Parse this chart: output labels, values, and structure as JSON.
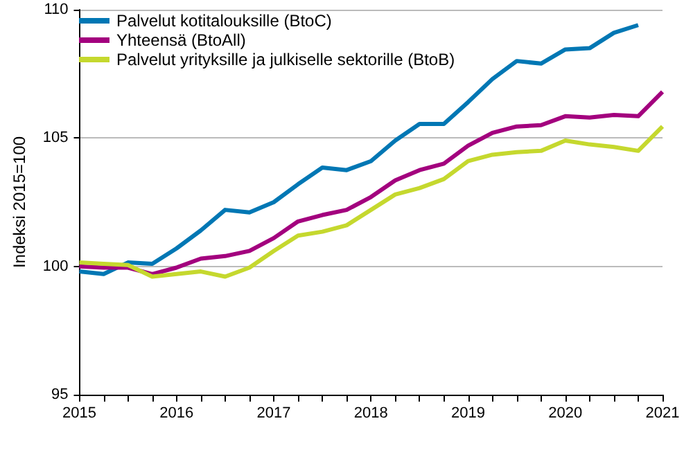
{
  "chart_data": {
    "type": "line",
    "ylabel": "Indeksi 2015=100",
    "x": [
      2015,
      2015.25,
      2015.5,
      2015.75,
      2016,
      2016.25,
      2016.5,
      2016.75,
      2017,
      2017.25,
      2017.5,
      2017.75,
      2018,
      2018.25,
      2018.5,
      2018.75,
      2019,
      2019.25,
      2019.5,
      2019.75,
      2020,
      2020.25,
      2020.5,
      2020.75,
      2021
    ],
    "series": [
      {
        "name": "Palvelut kotitalouksille (BtoC)",
        "color": "#0077b4",
        "values": [
          99.8,
          99.7,
          100.15,
          100.1,
          100.7,
          101.4,
          102.2,
          102.1,
          102.5,
          103.2,
          103.85,
          103.75,
          104.1,
          104.9,
          105.55,
          105.55,
          106.4,
          107.3,
          108.0,
          107.9,
          108.45,
          108.5,
          109.1,
          109.4,
          null
        ]
      },
      {
        "name": "Yhteensä (BtoAll)",
        "color": "#a3007e",
        "values": [
          100.0,
          99.95,
          99.95,
          99.7,
          99.95,
          100.3,
          100.4,
          100.6,
          101.1,
          101.75,
          102.0,
          102.2,
          102.7,
          103.35,
          103.75,
          104.0,
          104.7,
          105.2,
          105.45,
          105.5,
          105.85,
          105.8,
          105.9,
          105.85,
          106.8
        ]
      },
      {
        "name": "Palvelut yrityksille ja julkiselle sektorille (BtoB)",
        "color": "#c5d82e",
        "values": [
          100.15,
          100.1,
          100.05,
          99.6,
          99.7,
          99.8,
          99.6,
          99.95,
          100.6,
          101.2,
          101.35,
          101.6,
          102.2,
          102.8,
          103.05,
          103.4,
          104.1,
          104.35,
          104.45,
          104.5,
          104.9,
          104.75,
          104.65,
          104.5,
          105.45
        ]
      }
    ],
    "xlim": [
      2015,
      2021
    ],
    "xticks": [
      2015,
      {
        "value": 2015.25,
        "label": null
      },
      {
        "value": 2015.5,
        "label": null
      },
      {
        "value": 2015.75,
        "label": null
      },
      2016,
      {
        "value": 2016.25,
        "label": null
      },
      {
        "value": 2016.5,
        "label": null
      },
      {
        "value": 2016.75,
        "label": null
      },
      2017,
      {
        "value": 2017.25,
        "label": null
      },
      {
        "value": 2017.5,
        "label": null
      },
      {
        "value": 2017.75,
        "label": null
      },
      2018,
      {
        "value": 2018.25,
        "label": null
      },
      {
        "value": 2018.5,
        "label": null
      },
      {
        "value": 2018.75,
        "label": null
      },
      2019,
      {
        "value": 2019.25,
        "label": null
      },
      {
        "value": 2019.5,
        "label": null
      },
      {
        "value": 2019.75,
        "label": null
      },
      2020,
      {
        "value": 2020.25,
        "label": null
      },
      {
        "value": 2020.5,
        "label": null
      },
      {
        "value": 2020.75,
        "label": null
      },
      2021
    ],
    "ylim": [
      95,
      110
    ],
    "yticks": [
      95,
      100,
      105,
      110
    ],
    "grid": "y",
    "legend": "top left",
    "marker": "none",
    "line_style": "solid"
  }
}
